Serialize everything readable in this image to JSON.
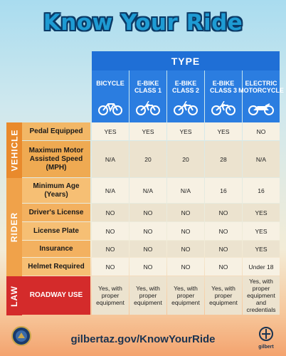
{
  "title": "Know Your Ride",
  "type_header": "TYPE",
  "columns": [
    {
      "label": "BICYCLE",
      "icon": "bicycle-icon"
    },
    {
      "label": "E-BIKE\nCLASS 1",
      "icon": "ebike-icon"
    },
    {
      "label": "E-BIKE\nCLASS 2",
      "icon": "ebike-icon"
    },
    {
      "label": "E-BIKE\nCLASS 3",
      "icon": "ebike-icon"
    },
    {
      "label": "ELECTRIC\nMOTORCYCLE",
      "icon": "motorcycle-icon"
    }
  ],
  "sections": [
    {
      "label": "VEHICLE",
      "color": "#e98a2c",
      "rows": [
        {
          "label": "Pedal Equipped",
          "values": [
            "YES",
            "YES",
            "YES",
            "YES",
            "NO"
          ]
        },
        {
          "label": "Maximum Motor\nAssisted Speed\n(MPH)",
          "values": [
            "N/A",
            "20",
            "20",
            "28",
            "N/A"
          ]
        }
      ]
    },
    {
      "label": "RIDER",
      "color": "#f0a24a",
      "rows": [
        {
          "label": "Minimum Age\n(Years)",
          "values": [
            "N/A",
            "N/A",
            "N/A",
            "16",
            "16"
          ]
        },
        {
          "label": "Driver's License",
          "values": [
            "NO",
            "NO",
            "NO",
            "NO",
            "YES"
          ]
        },
        {
          "label": "License Plate",
          "values": [
            "NO",
            "NO",
            "NO",
            "NO",
            "YES"
          ]
        },
        {
          "label": "Insurance",
          "values": [
            "NO",
            "NO",
            "NO",
            "NO",
            "YES"
          ]
        },
        {
          "label": "Helmet Required",
          "values": [
            "NO",
            "NO",
            "NO",
            "NO",
            "Under 18"
          ]
        }
      ]
    },
    {
      "label": "LAW",
      "color": "#d42b2b",
      "rows": [
        {
          "label": "ROADWAY USE",
          "values": [
            "Yes, with\nproper\nequipment",
            "Yes, with\nproper\nequipment",
            "Yes, with\nproper\nequipment",
            "Yes, with\nproper\nequipment",
            "Yes, with\nproper\nequipment\nand\ncredentials"
          ]
        }
      ]
    }
  ],
  "footer": {
    "url": "gilbertaz.gov/KnowYourRide",
    "logo_text": "gilbert"
  },
  "colors": {
    "type_blue": "#1f6fd6",
    "header_blue": "#2b7de0",
    "vehicle_orange": "#e98a2c",
    "rider_orange": "#f0a24a",
    "law_red": "#d42b2b"
  }
}
